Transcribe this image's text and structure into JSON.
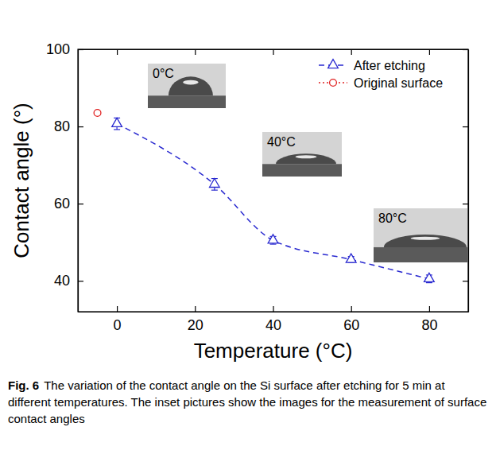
{
  "chart_data": {
    "type": "line",
    "x_label": "Temperature (°C)",
    "y_label": "Contact angle (°)",
    "xlim": [
      -10,
      90
    ],
    "xticks": [
      0,
      20,
      40,
      60,
      80
    ],
    "ylim": [
      32,
      100
    ],
    "yticks": [
      40,
      60,
      80,
      100
    ],
    "legend": "upper right",
    "grid": false,
    "series": [
      {
        "name": "After etching",
        "color": "#2a2ad0",
        "marker": "triangle",
        "line_style": "dashed",
        "x": [
          0,
          25,
          40,
          60,
          80
        ],
        "values": [
          80.7,
          65.0,
          50.5,
          45.5,
          40.5
        ],
        "errors": [
          1.5,
          1.5,
          1.0,
          0.8,
          1.0
        ]
      },
      {
        "name": "Original surface",
        "color": "#e02020",
        "marker": "circle",
        "line_style": "dotted",
        "x": [
          -5
        ],
        "values": [
          83.5
        ]
      }
    ],
    "annotations": [
      "0°C",
      "40°C",
      "80°C"
    ],
    "caption_label": "Fig. 6",
    "caption": "The variation of the contact angle on the Si surface after etching for 5 min at different temperatures. The inset pictures show the images for the measurement of surface contact angles"
  }
}
